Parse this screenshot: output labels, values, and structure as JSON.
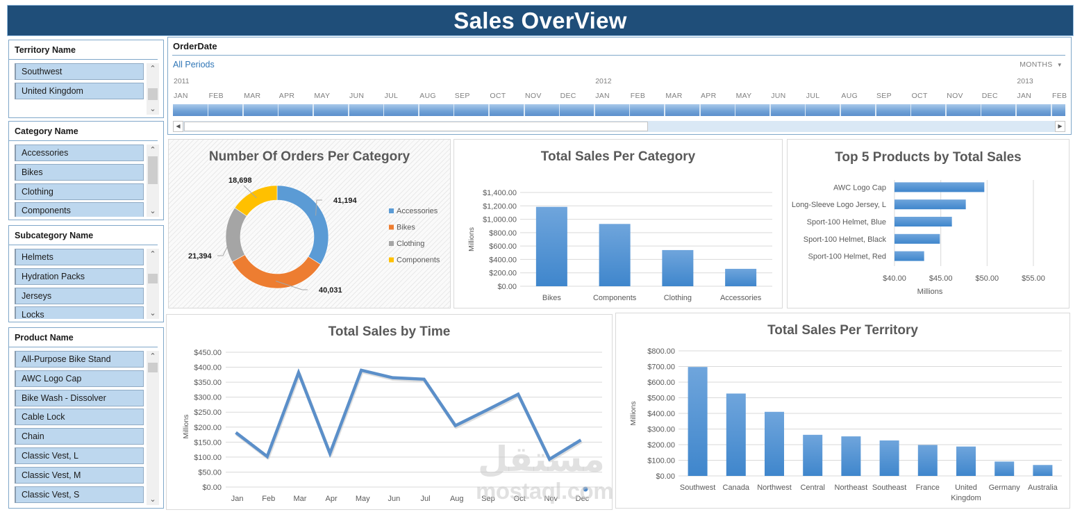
{
  "header": {
    "title": "Sales OverView",
    "color": "#1f4e79"
  },
  "slicers": [
    {
      "id": "territory",
      "title": "Territory Name",
      "items": [
        "Southwest",
        "United Kingdom"
      ]
    },
    {
      "id": "category",
      "title": "Category Name",
      "items": [
        "Accessories",
        "Bikes",
        "Clothing",
        "Components"
      ]
    },
    {
      "id": "subcategory",
      "title": "Subcategory Name",
      "items": [
        "Helmets",
        "Hydration Packs",
        "Jerseys",
        "Locks"
      ]
    },
    {
      "id": "product",
      "title": "Product Name",
      "items": [
        "All-Purpose Bike Stand",
        "AWC Logo Cap",
        "Bike Wash - Dissolver",
        "Cable Lock",
        "Chain",
        "Classic Vest, L",
        "Classic Vest, M",
        "Classic Vest, S"
      ]
    }
  ],
  "timeline": {
    "title": "OrderDate",
    "selection": "All Periods",
    "level": "MONTHS",
    "years": [
      "2011",
      "2012",
      "2013"
    ],
    "months": [
      "JAN",
      "FEB",
      "MAR",
      "APR",
      "MAY",
      "JUN",
      "JUL",
      "AUG",
      "SEP",
      "OCT",
      "NOV",
      "DEC",
      "JAN",
      "FEB",
      "MAR",
      "APR",
      "MAY",
      "JUN",
      "JUL",
      "AUG",
      "SEP",
      "OCT",
      "NOV",
      "DEC",
      "JAN",
      "FEB"
    ]
  },
  "watermark": {
    "arabic": "مستقل",
    "latin": "mostaql.com"
  },
  "chart_data": [
    {
      "id": "orders-per-category",
      "type": "pie",
      "title": "Number Of Orders Per Category",
      "categories": [
        "Accessories",
        "Bikes",
        "Clothing",
        "Components"
      ],
      "values": [
        41194,
        40031,
        21394,
        18698
      ],
      "labels": [
        "41,194",
        "40,031",
        "21,394",
        "18,698"
      ],
      "colors": [
        "#5b9bd5",
        "#ed7d31",
        "#a5a5a5",
        "#ffc000"
      ],
      "donut": true,
      "legend_position": "right"
    },
    {
      "id": "sales-per-category",
      "type": "bar",
      "title": "Total Sales Per Category",
      "categories": [
        "Bikes",
        "Components",
        "Clothing",
        "Accessories"
      ],
      "values": [
        1185,
        930,
        540,
        260
      ],
      "xlabel": "",
      "ylabel": "Millions",
      "ylim": [
        0,
        1400
      ],
      "yticks": [
        "$0.00",
        "$200.00",
        "$400.00",
        "$600.00",
        "$800.00",
        "$1,000.00",
        "$1,200.00",
        "$1,400.00"
      ],
      "grid": true
    },
    {
      "id": "top5-products",
      "type": "bar",
      "orientation": "horizontal",
      "title": "Top 5 Products by Total Sales",
      "categories": [
        "AWC Logo Cap",
        "Long-Sleeve Logo Jersey, L",
        "Sport-100 Helmet, Blue",
        "Sport-100 Helmet, Black",
        "Sport-100 Helmet, Red"
      ],
      "values": [
        49.7,
        47.7,
        46.2,
        44.9,
        43.2
      ],
      "xlabel": "Millions",
      "ylabel": "",
      "xlim": [
        40,
        55
      ],
      "xticks": [
        "$40.00",
        "$45.00",
        "$50.00",
        "$55.00"
      ],
      "grid": true
    },
    {
      "id": "sales-by-time",
      "type": "line",
      "title": "Total Sales by Time",
      "categories": [
        "Jan",
        "Feb",
        "Mar",
        "Apr",
        "May",
        "Jun",
        "Jul",
        "Aug",
        "Sep",
        "Oct",
        "Nov",
        "Dec"
      ],
      "values": [
        182,
        102,
        382,
        112,
        390,
        365,
        360,
        205,
        257,
        310,
        93,
        157
      ],
      "xlabel": "",
      "ylabel": "Millions",
      "ylim": [
        0,
        450
      ],
      "yticks": [
        "$0.00",
        "$50.00",
        "$100.00",
        "$150.00",
        "$200.00",
        "$250.00",
        "$300.00",
        "$350.00",
        "$400.00",
        "$450.00"
      ],
      "grid": true
    },
    {
      "id": "sales-per-territory",
      "type": "bar",
      "title": "Total Sales Per Territory",
      "categories": [
        "Southwest",
        "Canada",
        "Northwest",
        "Central",
        "Northeast",
        "Southeast",
        "France",
        "United Kingdom",
        "Germany",
        "Australia"
      ],
      "values": [
        697,
        527,
        410,
        263,
        253,
        227,
        198,
        188,
        92,
        70
      ],
      "xlabel": "",
      "ylabel": "Millions",
      "ylim": [
        0,
        800
      ],
      "yticks": [
        "$0.00",
        "$100.00",
        "$200.00",
        "$300.00",
        "$400.00",
        "$500.00",
        "$600.00",
        "$700.00",
        "$800.00"
      ],
      "grid": true
    }
  ]
}
